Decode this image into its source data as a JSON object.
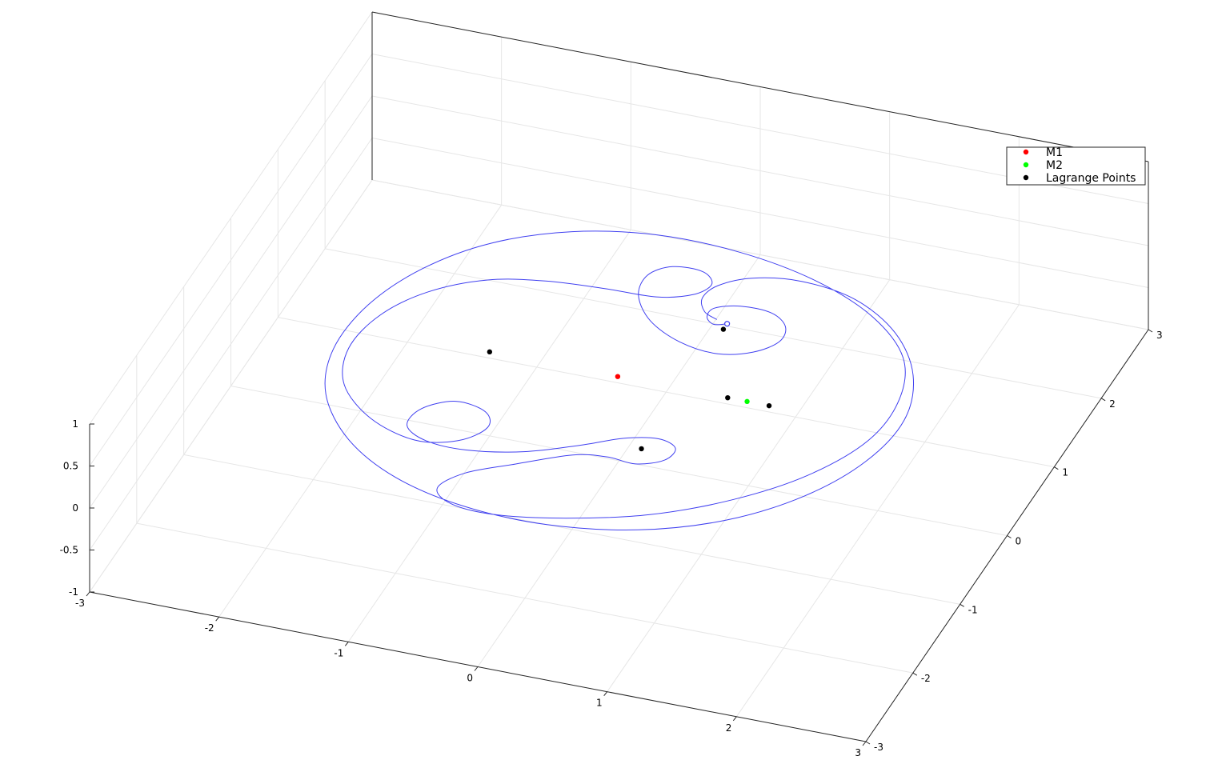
{
  "chart_data": {
    "type": "line",
    "plot3d": true,
    "xlim": [
      -3,
      3
    ],
    "ylim": [
      -3,
      3
    ],
    "zlim": [
      -1,
      1
    ],
    "xticks": [
      -3,
      -2,
      -1,
      0,
      1,
      2,
      3
    ],
    "yticks": [
      -3,
      -2,
      -1,
      0,
      1,
      2,
      3
    ],
    "zticks": [
      -1,
      -0.5,
      0,
      0.5,
      1
    ],
    "xtick_labels": [
      "-3",
      "-2",
      "-1",
      "0",
      "1",
      "2",
      "3"
    ],
    "ytick_labels": [
      "-3",
      "-2",
      "-1",
      "0",
      "1",
      "2",
      "3"
    ],
    "ztick_labels": [
      "-1",
      "-0.5",
      "0",
      "0.5",
      "1"
    ],
    "grid": true,
    "legend": {
      "placement": "top-right",
      "entries": [
        {
          "label": "M1",
          "color": "#ff0000"
        },
        {
          "label": "M2",
          "color": "#00ff00"
        },
        {
          "label": "Lagrange Points",
          "color": "#000000"
        }
      ]
    },
    "series": [
      {
        "name": "M1",
        "kind": "scatter",
        "color": "#ff0000",
        "points": [
          {
            "x": -0.01,
            "y": 0.0,
            "z": 0
          }
        ]
      },
      {
        "name": "M2",
        "kind": "scatter",
        "color": "#00ff00",
        "points": [
          {
            "x": 0.99,
            "y": 0.0,
            "z": 0
          }
        ]
      },
      {
        "name": "Lagrange Points",
        "kind": "scatter",
        "color": "#000000",
        "points": [
          {
            "x": 0.84,
            "y": 0.0,
            "z": 0
          },
          {
            "x": 1.16,
            "y": 0.0,
            "z": 0
          },
          {
            "x": -1.0,
            "y": 0.0,
            "z": 0
          },
          {
            "x": 0.49,
            "y": 0.87,
            "z": 0
          },
          {
            "x": 0.49,
            "y": -0.87,
            "z": 0
          }
        ]
      },
      {
        "kind": "line",
        "color": "#4040f0",
        "start": {
          "x": 0.49,
          "y": 0.95,
          "z": 0
        },
        "points": [
          [
            0.49,
            0.95
          ],
          [
            0.4,
            0.91
          ],
          [
            0.32,
            0.99
          ],
          [
            0.33,
            1.12
          ],
          [
            0.5,
            1.21
          ],
          [
            0.74,
            1.2
          ],
          [
            0.9,
            1.06
          ],
          [
            0.93,
            0.85
          ],
          [
            0.8,
            0.65
          ],
          [
            0.56,
            0.54
          ],
          [
            0.25,
            0.6
          ],
          [
            -0.05,
            0.8
          ],
          [
            -0.25,
            1.1
          ],
          [
            -0.28,
            1.38
          ],
          [
            -0.15,
            1.55
          ],
          [
            0.08,
            1.56
          ],
          [
            0.2,
            1.42
          ],
          [
            0.12,
            1.24
          ],
          [
            -0.12,
            1.12
          ],
          [
            -0.5,
            1.1
          ],
          [
            -0.95,
            1.05
          ],
          [
            -1.35,
            0.92
          ],
          [
            -1.7,
            0.62
          ],
          [
            -1.92,
            0.2
          ],
          [
            -1.98,
            -0.3
          ],
          [
            -1.84,
            -0.78
          ],
          [
            -1.5,
            -1.15
          ],
          [
            -1.1,
            -1.32
          ],
          [
            -0.8,
            -1.22
          ],
          [
            -0.66,
            -0.98
          ],
          [
            -0.75,
            -0.78
          ],
          [
            -1.0,
            -0.72
          ],
          [
            -1.2,
            -0.9
          ],
          [
            -1.22,
            -1.15
          ],
          [
            -1.02,
            -1.3
          ],
          [
            -0.7,
            -1.32
          ],
          [
            -0.3,
            -1.2
          ],
          [
            0.05,
            -0.98
          ],
          [
            0.32,
            -0.78
          ],
          [
            0.56,
            -0.7
          ],
          [
            0.72,
            -0.78
          ],
          [
            0.7,
            -0.96
          ],
          [
            0.52,
            -1.08
          ],
          [
            0.3,
            -1.06
          ],
          [
            0.05,
            -1.12
          ],
          [
            -0.3,
            -1.38
          ],
          [
            -0.6,
            -1.62
          ],
          [
            -0.72,
            -1.88
          ],
          [
            -0.55,
            -2.05
          ],
          [
            -0.2,
            -2.08
          ],
          [
            0.3,
            -1.95
          ],
          [
            0.85,
            -1.7
          ],
          [
            1.35,
            -1.3
          ],
          [
            1.75,
            -0.8
          ],
          [
            2.0,
            -0.2
          ],
          [
            2.02,
            0.4
          ],
          [
            1.85,
            0.95
          ],
          [
            1.45,
            1.4
          ],
          [
            0.9,
            1.72
          ],
          [
            0.25,
            1.9
          ],
          [
            -0.4,
            1.92
          ],
          [
            -1.0,
            1.75
          ],
          [
            -1.5,
            1.4
          ],
          [
            -1.85,
            0.9
          ],
          [
            -2.05,
            0.3
          ],
          [
            -2.08,
            -0.35
          ],
          [
            -1.92,
            -0.95
          ],
          [
            -1.55,
            -1.48
          ],
          [
            -1.05,
            -1.85
          ],
          [
            -0.45,
            -2.05
          ],
          [
            0.2,
            -2.08
          ],
          [
            0.85,
            -1.92
          ],
          [
            1.4,
            -1.58
          ],
          [
            1.82,
            -1.08
          ],
          [
            2.08,
            -0.48
          ],
          [
            2.15,
            0.15
          ],
          [
            2.0,
            0.75
          ],
          [
            1.68,
            1.25
          ],
          [
            1.25,
            1.58
          ],
          [
            0.8,
            1.68
          ],
          [
            0.45,
            1.6
          ],
          [
            0.25,
            1.42
          ],
          [
            0.2,
            1.22
          ],
          [
            0.28,
            1.05
          ],
          [
            0.4,
            0.98
          ]
        ]
      }
    ]
  }
}
